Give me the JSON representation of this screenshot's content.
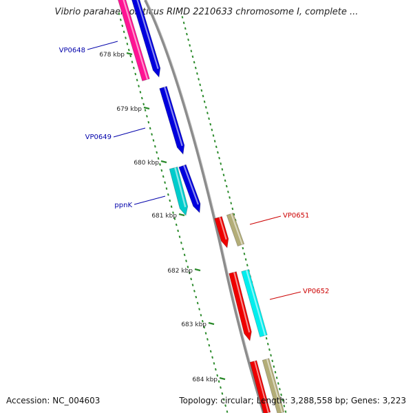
{
  "title": "Vibrio parahaemolyticus RIMD 2210633 chromosome I, complete ...",
  "footer": {
    "accession": "Accession: NC_004603",
    "summary": "Topology: circular; Length: 3,288,558 bp; Genes: 3,223"
  },
  "colors": {
    "backbone": "#8c8c8c",
    "tick": "#2a8a2a",
    "forward_label": "#0000aa",
    "reverse_label": "#cc0000"
  },
  "ticks": [
    {
      "label": "678 kbp"
    },
    {
      "label": "679 kbp"
    },
    {
      "label": "680 kbp"
    },
    {
      "label": "681 kbp"
    },
    {
      "label": "682 kbp"
    },
    {
      "label": "683 kbp"
    },
    {
      "label": "684 kbp"
    }
  ],
  "forward_genes": [
    {
      "label": "VP0648",
      "color": "#ff1493"
    },
    {
      "label": "",
      "color": "#0000dd"
    },
    {
      "label": "VP0649",
      "color": "#0000dd"
    },
    {
      "label": "ppnK",
      "color": "#00cccc"
    },
    {
      "label": "",
      "color": "#0000dd"
    }
  ],
  "reverse_genes": [
    {
      "label": "VP0651",
      "color": "#ee0000"
    },
    {
      "label": "",
      "color": "#b3ad78"
    },
    {
      "label": "VP0652",
      "color": "#ee0000"
    },
    {
      "label": "",
      "color": "#00eeee"
    },
    {
      "label": "",
      "color": "#ee0000"
    },
    {
      "label": "",
      "color": "#b3ad78"
    }
  ]
}
